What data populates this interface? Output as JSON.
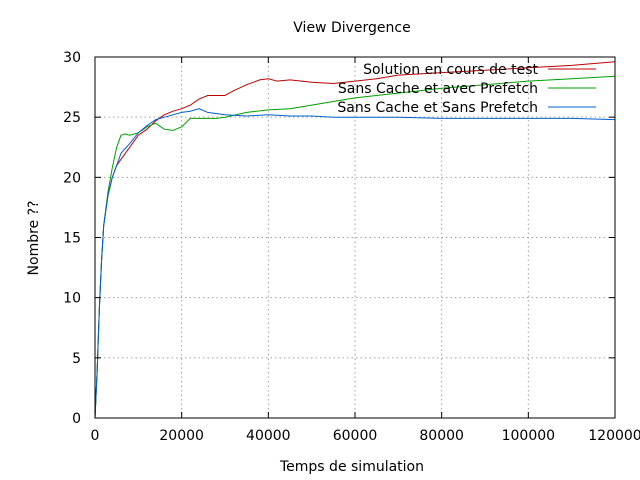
{
  "chart_data": {
    "type": "line",
    "title": "View Divergence",
    "xlabel": "Temps de simulation",
    "ylabel": "Nombre ??",
    "xlim": [
      0,
      120000
    ],
    "ylim": [
      0,
      30
    ],
    "xticks": [
      0,
      20000,
      40000,
      60000,
      80000,
      100000,
      120000
    ],
    "yticks": [
      0,
      5,
      10,
      15,
      20,
      25,
      30
    ],
    "grid": true,
    "legend_position": "top-right",
    "series": [
      {
        "name": "Solution en cours de test",
        "color": "#c00000",
        "x": [
          0,
          500,
          1000,
          1500,
          2000,
          3000,
          4000,
          5000,
          6000,
          8000,
          10000,
          12000,
          14000,
          16000,
          18000,
          20000,
          22000,
          24000,
          26000,
          28000,
          30000,
          32000,
          35000,
          38000,
          40000,
          42000,
          45000,
          50000,
          55000,
          60000,
          65000,
          70000,
          80000,
          90000,
          100000,
          110000,
          120000
        ],
        "y": [
          0,
          4,
          9,
          13,
          16,
          18.5,
          20,
          21,
          21.5,
          22.5,
          23.5,
          24,
          24.7,
          25.2,
          25.5,
          25.7,
          26,
          26.5,
          26.8,
          26.8,
          26.8,
          27.2,
          27.7,
          28.1,
          28.2,
          28,
          28.1,
          27.9,
          27.8,
          28,
          28.2,
          28.5,
          28.7,
          28.9,
          29.1,
          29.3,
          29.6
        ]
      },
      {
        "name": "Sans Cache et avec Prefetch",
        "color": "#00a000",
        "x": [
          0,
          500,
          1000,
          1500,
          2000,
          3000,
          4000,
          5000,
          6000,
          7000,
          8000,
          10000,
          12000,
          14000,
          16000,
          18000,
          20000,
          22000,
          24000,
          26000,
          28000,
          30000,
          35000,
          40000,
          45000,
          50000,
          55000,
          60000,
          70000,
          80000,
          90000,
          100000,
          110000,
          120000
        ],
        "y": [
          0,
          4,
          9,
          13,
          16,
          18.8,
          20.8,
          22.5,
          23.5,
          23.6,
          23.5,
          23.7,
          24.2,
          24.5,
          24,
          23.9,
          24.2,
          24.9,
          24.9,
          24.9,
          24.9,
          25,
          25.4,
          25.6,
          25.7,
          26,
          26.3,
          26.6,
          27,
          27.4,
          27.7,
          28,
          28.2,
          28.4
        ]
      },
      {
        "name": "Sans Cache et Sans Prefetch",
        "color": "#0060d0",
        "x": [
          0,
          500,
          1000,
          1500,
          2000,
          3000,
          4000,
          5000,
          6000,
          8000,
          10000,
          12000,
          14000,
          16000,
          18000,
          20000,
          22000,
          24000,
          26000,
          30000,
          35000,
          40000,
          45000,
          50000,
          55000,
          60000,
          70000,
          80000,
          90000,
          100000,
          110000,
          120000
        ],
        "y": [
          0,
          4,
          9,
          13,
          16,
          18.5,
          20,
          21,
          22,
          22.8,
          23.7,
          24.3,
          24.8,
          25,
          25.2,
          25.4,
          25.5,
          25.7,
          25.4,
          25.2,
          25.1,
          25.2,
          25.1,
          25.1,
          25,
          25,
          25,
          24.9,
          24.9,
          24.9,
          24.9,
          24.8
        ]
      }
    ]
  }
}
